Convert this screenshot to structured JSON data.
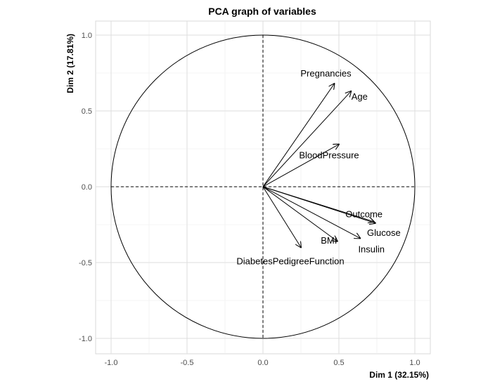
{
  "chart_data": {
    "type": "scatter",
    "title": "PCA graph of variables",
    "xlabel": "Dim 1 (32.15%)",
    "ylabel": "Dim 2 (17.81%)",
    "xlim": [
      -1.1,
      1.1
    ],
    "ylim": [
      -1.1,
      1.1
    ],
    "xticks": [
      -1.0,
      -0.5,
      0.0,
      0.5,
      1.0
    ],
    "yticks": [
      -1.0,
      -0.5,
      0.0,
      0.5,
      1.0
    ],
    "xtick_labels": [
      "-1.0",
      "-0.5",
      "0.0",
      "0.5",
      "1.0"
    ],
    "ytick_labels": [
      "-1.0",
      "-0.5",
      "0.0",
      "0.5",
      "1.0"
    ],
    "grid": true,
    "correlation_circle": true,
    "variables": [
      {
        "name": "Pregnancies",
        "x": 0.47,
        "y": 0.68
      },
      {
        "name": "Age",
        "x": 0.58,
        "y": 0.63
      },
      {
        "name": "BloodPressure",
        "x": 0.5,
        "y": 0.28
      },
      {
        "name": "Outcome",
        "x": 0.73,
        "y": -0.23
      },
      {
        "name": "Glucose",
        "x": 0.74,
        "y": -0.24
      },
      {
        "name": "BMI",
        "x": 0.49,
        "y": -0.36
      },
      {
        "name": "Insulin",
        "x": 0.64,
        "y": -0.34
      },
      {
        "name": "DiabetesPedigreeFunction",
        "x": 0.25,
        "y": -0.4
      }
    ]
  }
}
